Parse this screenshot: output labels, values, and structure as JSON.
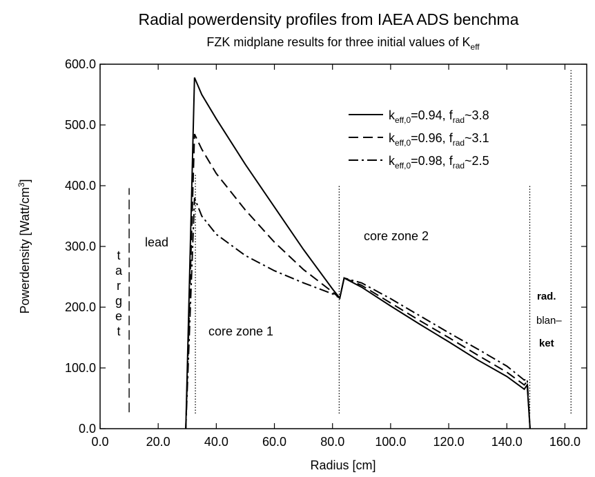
{
  "chart_data": {
    "type": "line",
    "title": "Radial powerdensity profiles from IAEA ADS benchma",
    "subtitle": [
      "FZK  midplane results for three initial values of K",
      "eff"
    ],
    "x_label": "Radius  [cm]",
    "y_label": [
      "Powerdensity  [Watt/cm",
      "3",
      "]"
    ],
    "xlim": [
      0,
      167.5
    ],
    "ylim": [
      0,
      600
    ],
    "xticks": [
      {
        "value": 0,
        "label": "0.0"
      },
      {
        "value": 20,
        "label": "20.0"
      },
      {
        "value": 40,
        "label": "40.0"
      },
      {
        "value": 60,
        "label": "60.0"
      },
      {
        "value": 80,
        "label": "80.0"
      },
      {
        "value": 100,
        "label": "100.0"
      },
      {
        "value": 120,
        "label": "120.0"
      },
      {
        "value": 140,
        "label": "140.0"
      },
      {
        "value": 160,
        "label": "160.0"
      }
    ],
    "yticks": [
      {
        "value": 0,
        "label": "0.0"
      },
      {
        "value": 100,
        "label": "100.0"
      },
      {
        "value": 200,
        "label": "200.0"
      },
      {
        "value": 300,
        "label": "300.0"
      },
      {
        "value": 400,
        "label": "400.0"
      },
      {
        "value": 500,
        "label": "500.0"
      },
      {
        "value": 600,
        "label": "600.0"
      }
    ],
    "x": [
      29.5,
      32.5,
      35,
      40,
      50,
      60,
      70,
      80,
      82.5,
      84,
      90,
      100,
      110,
      120,
      130,
      140,
      146,
      147,
      148
    ],
    "series": [
      {
        "name": [
          "k",
          "eff,0",
          "=0.94, f",
          "rad",
          "~3.8"
        ],
        "color": "#000000",
        "dash": "solid",
        "values": [
          0,
          578,
          550,
          510,
          435,
          365,
          295,
          230,
          215,
          248,
          233,
          202,
          172,
          143,
          113,
          86,
          65,
          72,
          0
        ]
      },
      {
        "name": [
          "k",
          "eff,0",
          "=0.96, f",
          "rad",
          "~3.1"
        ],
        "color": "#000000",
        "dash": "dashed",
        "values": [
          0,
          485,
          460,
          420,
          360,
          307,
          262,
          225,
          215,
          248,
          236,
          207,
          178,
          150,
          121,
          93,
          72,
          78,
          0
        ]
      },
      {
        "name": [
          "k",
          "eff,0",
          "=0.98, f",
          "rad",
          "~2.5"
        ],
        "color": "#000000",
        "dash": "dashdot",
        "values": [
          0,
          380,
          350,
          320,
          285,
          260,
          240,
          222,
          215,
          248,
          240,
          214,
          186,
          158,
          131,
          103,
          80,
          82,
          0
        ]
      }
    ],
    "zone_lines": [
      {
        "x": 10,
        "ylim": [
          27,
          396
        ],
        "style": "dashed"
      },
      {
        "x": 32.8,
        "ylim": [
          25,
          420
        ],
        "style": "dotted"
      },
      {
        "x": 82.3,
        "ylim": [
          25,
          400
        ],
        "style": "dotted"
      },
      {
        "x": 147.9,
        "ylim": [
          25,
          400
        ],
        "style": "dotted"
      },
      {
        "x": 162.1,
        "ylim": [
          25,
          590
        ],
        "style": "dotted"
      }
    ],
    "annotations": [
      "target",
      "lead",
      "core zone 1",
      "core zone 2",
      "rad.",
      "blan–",
      "ket"
    ]
  }
}
